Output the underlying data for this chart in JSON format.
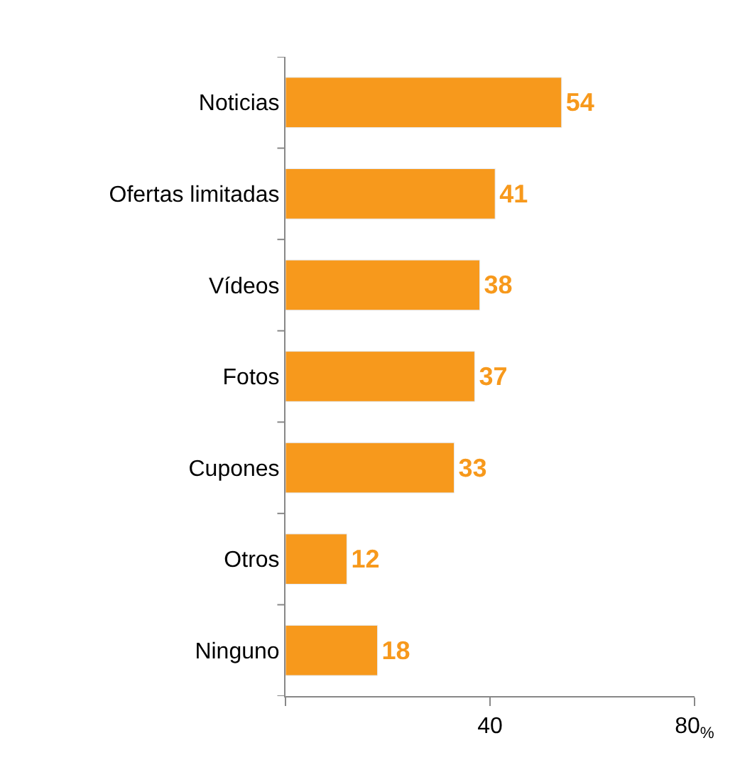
{
  "chart_data": {
    "type": "bar",
    "orientation": "horizontal",
    "categories": [
      "Noticias",
      "Ofertas limitadas",
      "Vídeos",
      "Fotos",
      "Cupones",
      "Otros",
      "Ninguno"
    ],
    "values": [
      54,
      41,
      38,
      37,
      33,
      12,
      18
    ],
    "color": "#f7991c",
    "data_labels": true,
    "xlim": [
      0,
      80
    ],
    "xticks": [
      {
        "value": 0,
        "label": null
      },
      40,
      {
        "value": 80,
        "label": "80$_{%}$"
      }
    ]
  }
}
